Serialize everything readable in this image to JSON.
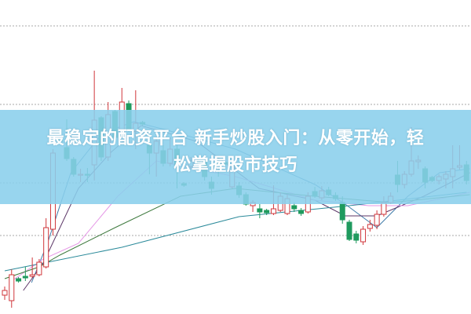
{
  "headline": {
    "line1": "最稳定的配资平台 新手炒股入门：从零开始，轻",
    "line2": "松掌握股市技巧"
  },
  "colors": {
    "up": "#d0363a",
    "down": "#1f9a5e",
    "banner": "#8acfec",
    "grid": "#aaaaaa"
  },
  "chart_data": {
    "type": "candlestick",
    "title": "",
    "xlabel": "",
    "ylabel": "",
    "ylim": [
      0,
      100
    ],
    "grid": "horizontal dotted",
    "gridlines": [
      25,
      41.75,
      66.75,
      91.75
    ],
    "candles": [
      [
        6,
        7.5,
        8.75,
        4.5
      ],
      [
        4.25,
        12.5,
        14.25,
        2
      ],
      [
        11.25,
        10.5,
        11.75,
        10
      ],
      [
        12,
        11.5,
        15,
        10.5
      ],
      [
        12,
        12.5,
        18,
        11.5
      ],
      [
        12.5,
        16.5,
        17.5,
        12
      ],
      [
        15,
        27.5,
        30.5,
        14.5
      ],
      [
        27,
        51.25,
        52.5,
        25
      ],
      [
        56,
        55,
        56.25,
        54.5
      ],
      [
        53,
        49.5,
        62,
        48.75
      ],
      [
        49.25,
        44.5,
        50,
        43.75
      ],
      [
        44.5,
        44.5,
        46.25,
        42
      ],
      [
        44.5,
        44.25,
        46.5,
        42
      ],
      [
        47.5,
        61.75,
        77.5,
        42.5
      ],
      [
        62.5,
        50,
        63,
        48.75
      ],
      [
        50,
        63.5,
        67.5,
        48.75
      ],
      [
        64.5,
        56.25,
        65,
        55
      ],
      [
        57.5,
        67.5,
        72,
        56.25
      ],
      [
        67,
        58.75,
        68,
        58
      ],
      [
        58.25,
        60.75,
        71.25,
        52.5
      ],
      [
        61,
        60.5,
        61.5,
        60
      ],
      [
        53.75,
        51.25,
        57.5,
        44.5
      ],
      [
        51.25,
        55,
        56.25,
        43.75
      ],
      [
        52,
        48,
        53.75,
        47
      ],
      [
        48,
        52.5,
        56.25,
        47
      ],
      [
        52.5,
        47.5,
        53.75,
        40
      ],
      [
        41.5,
        41,
        42,
        40.5
      ],
      [
        47,
        48.75,
        50,
        46.25
      ],
      [
        48.75,
        48,
        50.5,
        47
      ],
      [
        48.75,
        43.75,
        50,
        42.5
      ],
      [
        42,
        40,
        43.75,
        38
      ],
      [
        48.5,
        47.5,
        50,
        43.75
      ],
      [
        48.25,
        47.75,
        48.75,
        47.25
      ],
      [
        40.5,
        47,
        48.75,
        40
      ],
      [
        40.75,
        38,
        42,
        37
      ],
      [
        38,
        35,
        38.75,
        34.5
      ],
      [
        34.5,
        35.5,
        36.25,
        32.5
      ],
      [
        33.5,
        32.5,
        35,
        30.5
      ],
      [
        33,
        32.25,
        33.5,
        31.5
      ],
      [
        32,
        33.5,
        41,
        31.5
      ],
      [
        33,
        37.5,
        38.75,
        32.5
      ],
      [
        32,
        36.75,
        38,
        31.5
      ],
      [
        34.5,
        33.5,
        35.5,
        32.5
      ],
      [
        33,
        32,
        33.75,
        31.25
      ],
      [
        32.5,
        37.5,
        38.75,
        32
      ],
      [
        39,
        37.5,
        40.5,
        37
      ],
      [
        37,
        39.25,
        40.75,
        36.25
      ],
      [
        39.5,
        38,
        40.5,
        37.5
      ],
      [
        37.75,
        36.75,
        38.75,
        36
      ],
      [
        35.5,
        30,
        37.5,
        28.75
      ],
      [
        29.25,
        23.75,
        30,
        23.25
      ],
      [
        25.5,
        23.5,
        26.5,
        22.5
      ],
      [
        23,
        27,
        28,
        22
      ],
      [
        27.25,
        28.5,
        30,
        26.25
      ],
      [
        28.25,
        31.75,
        33,
        27
      ],
      [
        31.75,
        35.5,
        37.5,
        31
      ],
      [
        35.5,
        37.5,
        38.75,
        35
      ],
      [
        44.25,
        41.25,
        48.75,
        38.75
      ],
      [
        41.25,
        44.5,
        45.5,
        40
      ],
      [
        44.5,
        48.75,
        59.5,
        43.75
      ],
      [
        48.5,
        49,
        50.5,
        46.25
      ],
      [
        46.25,
        42,
        47,
        40
      ],
      [
        43.5,
        42.5,
        44,
        42
      ],
      [
        42.5,
        43.75,
        44.5,
        41.25
      ],
      [
        43,
        44.5,
        45.5,
        40
      ],
      [
        43.75,
        46.25,
        53.75,
        40
      ],
      [
        46.75,
        47.25,
        53.75,
        46
      ],
      [
        47.5,
        42.5,
        48.75,
        41.25
      ]
    ],
    "candle_fields": [
      "open",
      "close",
      "high",
      "low"
    ],
    "moving_averages": [
      {
        "color": "#3d79a8",
        "points": [
          [
            3.9,
            10
          ],
          [
            6.2,
            22.5
          ],
          [
            9.6,
            45
          ],
          [
            14.1,
            57.5
          ],
          [
            18.7,
            61.25
          ],
          [
            23.2,
            58.75
          ],
          [
            33.5,
            52.5
          ],
          [
            45,
            41.25
          ],
          [
            49.4,
            35
          ],
          [
            54,
            27.5
          ],
          [
            58.5,
            37.5
          ],
          [
            63.1,
            45
          ],
          [
            67.5,
            46.25
          ]
        ]
      },
      {
        "color": "#5b3566",
        "points": [
          [
            2.7,
            7.5
          ],
          [
            5.6,
            16.25
          ],
          [
            10.7,
            40
          ],
          [
            15.3,
            51.25
          ],
          [
            19.8,
            60
          ],
          [
            27.8,
            55
          ],
          [
            36.9,
            40
          ],
          [
            45,
            36.25
          ],
          [
            49.4,
            31.25
          ],
          [
            54,
            31.25
          ],
          [
            60.8,
            37.5
          ],
          [
            67.5,
            45
          ]
        ]
      },
      {
        "color": "#e596e6",
        "points": [
          [
            1,
            10.5
          ],
          [
            5.6,
            17.5
          ],
          [
            10.7,
            22.5
          ],
          [
            16.4,
            37.5
          ],
          [
            22,
            48.75
          ],
          [
            33.5,
            43.75
          ],
          [
            45,
            36.25
          ],
          [
            52.8,
            34.5
          ],
          [
            58.5,
            34.5
          ],
          [
            67.5,
            38.75
          ]
        ]
      },
      {
        "color": "#3f7a3f",
        "points": [
          [
            0,
            11.25
          ],
          [
            5,
            15
          ],
          [
            8,
            18.75
          ],
          [
            16,
            27.5
          ],
          [
            25.5,
            37.5
          ],
          [
            33.5,
            40
          ],
          [
            45,
            37.5
          ],
          [
            56,
            35.5
          ],
          [
            67.5,
            38
          ]
        ]
      },
      {
        "color": "#2b8a9a",
        "points": [
          [
            0,
            13.75
          ],
          [
            17,
            21.25
          ],
          [
            34,
            31
          ],
          [
            50,
            34.5
          ],
          [
            67,
            38.75
          ]
        ]
      }
    ]
  }
}
